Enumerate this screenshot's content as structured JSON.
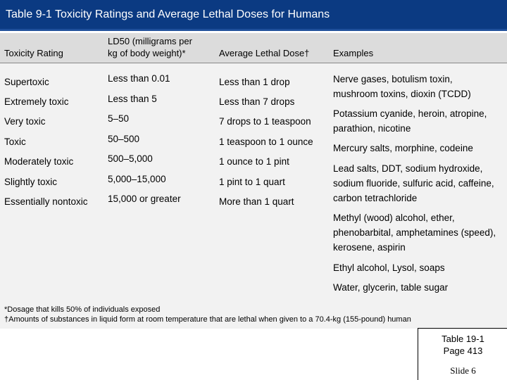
{
  "title": "Table 9-1 Toxicity Ratings and Average Lethal Doses for Humans",
  "headers": {
    "rating": "Toxicity Rating",
    "ld50_line1": "LD50 (milligrams per",
    "ld50_line2": "kg of body weight)*",
    "dose": "Average Lethal Dose†",
    "examples": "Examples"
  },
  "rows": [
    {
      "rating": "Supertoxic",
      "ld50": "Less than 0.01",
      "dose": "Less than 1 drop"
    },
    {
      "rating": "Extremely toxic",
      "ld50": "Less than 5",
      "dose": "Less than 7 drops"
    },
    {
      "rating": "Very toxic",
      "ld50": "5–50",
      "dose": "7 drops to 1 teaspoon"
    },
    {
      "rating": "Toxic",
      "ld50": "50–500",
      "dose": "1 teaspoon to 1 ounce"
    },
    {
      "rating": "Moderately toxic",
      "ld50": "500–5,000",
      "dose": "1 ounce to 1 pint"
    },
    {
      "rating": "Slightly toxic",
      "ld50": "5,000–15,000",
      "dose": "1 pint to 1 quart"
    },
    {
      "rating": "Essentially nontoxic",
      "ld50": "15,000 or greater",
      "dose": "More than 1 quart"
    }
  ],
  "examples": [
    {
      "line1": "Nerve gases, botulism toxin,",
      "line2": "mushroom toxins, dioxin (TCDD)"
    },
    {
      "line1": "Potassium cyanide, heroin, atropine,",
      "line2": "parathion, nicotine"
    },
    {
      "line1": "Mercury salts, morphine, codeine"
    },
    {
      "line1": "Lead salts, DDT, sodium hydroxide,",
      "line2": "sodium fluoride, sulfuric acid, caffeine,",
      "line3": "carbon tetrachloride"
    },
    {
      "line1": "Methyl (wood) alcohol, ether,",
      "line2": "phenobarbital, amphetamines (speed),",
      "line3": "kerosene, aspirin"
    },
    {
      "line1": "Ethyl alcohol, Lysol, soaps"
    },
    {
      "line1": "Water, glycerin, table sugar"
    }
  ],
  "footnotes": {
    "note1": "*Dosage that kills 50% of individuals exposed",
    "note2": "†Amounts of substances in liquid form at room temperature that are lethal when given to a 70.4-kg (155-pound) human"
  },
  "reference": {
    "line1": "Table 19-1",
    "line2": "Page 413",
    "slide": "Slide 6"
  }
}
